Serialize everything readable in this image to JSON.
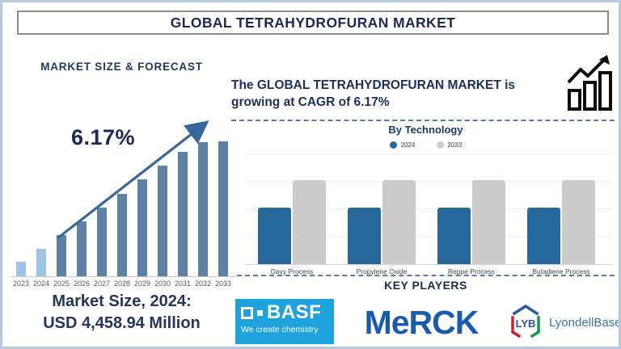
{
  "page": {
    "title": "GLOBAL TETRAHYDROFURAN MARKET"
  },
  "left": {
    "heading": "MARKET SIZE & FORECAST",
    "cagr_label": "6.17%",
    "market_size_line1": "Market Size, 2024:",
    "market_size_line2": "USD 4,458.94 Million"
  },
  "right": {
    "growth_statement": "The GLOBAL TETRAHYDROFURAN MARKET is growing at CAGR of 6.17%",
    "growth_icon": "bar-chart-growth-icon"
  },
  "key_players": {
    "heading": "KEY PLAYERS",
    "basf": {
      "name": "BASF",
      "tagline": "We create chemistry"
    },
    "merck": {
      "name": "MeRCK"
    },
    "lyondellbasell": {
      "abbr": "LYB",
      "name": "LyondellBasell"
    }
  },
  "chart_data": [
    {
      "type": "bar",
      "title": "MARKET SIZE & FORECAST",
      "categories": [
        "2023",
        "2024",
        "2025",
        "2026",
        "2027",
        "2028",
        "2029",
        "2030",
        "2031",
        "2032",
        "2033"
      ],
      "values": [
        18,
        34,
        51,
        68,
        85,
        102,
        120,
        137,
        154,
        166,
        167
      ],
      "values_unit": "relative_bar_height_px (no value axis shown)",
      "annotation": "6.17% CAGR with upward trend arrow",
      "known_point": "2024 market size = USD 4,458.94 Million",
      "xlabel": "",
      "ylabel": "",
      "grid": false,
      "style_note": "2023-2024 bars light blue, 2025-2033 bars steel blue"
    },
    {
      "type": "bar",
      "title": "By Technology",
      "categories": [
        "Davy Process",
        "Propylene Oxide",
        "Reppe Process",
        "Butadiene Process"
      ],
      "series": [
        {
          "name": "2024",
          "values": [
            70,
            70,
            70,
            70
          ],
          "color": "#26689a"
        },
        {
          "name": "2033",
          "values": [
            104,
            104,
            104,
            104
          ],
          "color": "#cbcbcb"
        }
      ],
      "values_unit": "relative_bar_height_px (no value axis shown)",
      "legend_position": "top",
      "grid": true
    }
  ],
  "colors": {
    "navy": "#1f3864",
    "steel_blue": "#5e81a4",
    "light_blue": "#9dc3e6",
    "arrow_blue": "#38679b",
    "tech_blue": "#26689a",
    "bar_gray": "#cbcbcb",
    "dash_line": "#5b7b9e",
    "basf_blue": "#1fa3dc",
    "merck_blue": "#1a5cab",
    "lyb_blue": "#2b55a5",
    "lyb_red": "#cf2030",
    "lyb_green": "#109b48",
    "page_border": "#b7c9dd"
  }
}
